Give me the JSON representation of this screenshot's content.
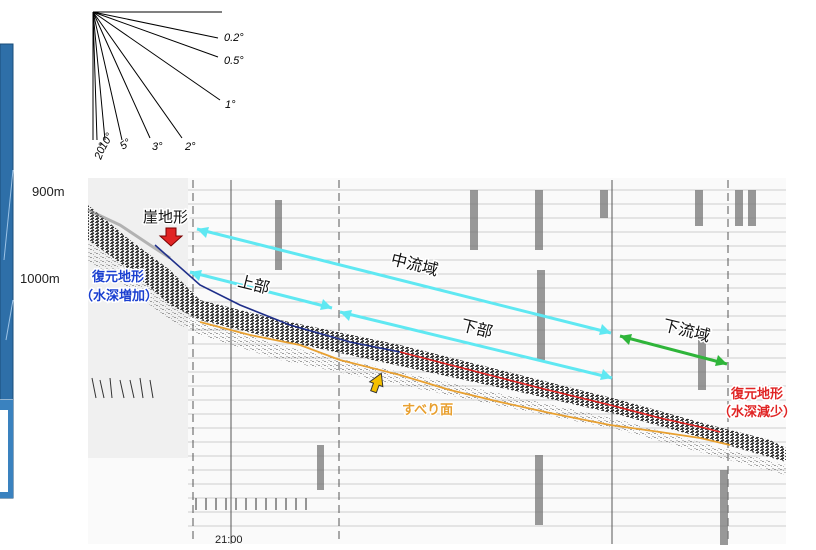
{
  "colors": {
    "section_blue": "#2e6fa8",
    "cyan_arrow": "#5fe8f2",
    "green_arrow": "#2fb53a",
    "red_line": "#e02424",
    "orange_line": "#e8a030",
    "navy_line": "#1f2f8a",
    "blue_text": "#1a3fd0",
    "red_text": "#e02424",
    "orange_text": "#e8a030"
  },
  "slope_scale": {
    "angles": [
      "0.2°",
      "0.5°",
      "1°",
      "2°",
      "3°",
      "5°",
      "10°",
      "20°"
    ]
  },
  "depth_axis": {
    "top": "900m",
    "mid": "1000m"
  },
  "labels": {
    "cliff": "崖地形",
    "restored_left_1": "復元地形",
    "restored_left_2": "（水深増加）",
    "upper": "上部",
    "lower": "下部",
    "middle_channel": "中流域",
    "lower_channel": "下流域",
    "restored_right_1": "復元地形",
    "restored_right_2": "（水深減少）",
    "slip_surface": "すべり面",
    "time": "21:00"
  },
  "icons": {
    "red_marker": "red-down-arrow-icon",
    "yellow_marker": "yellow-up-arrow-icon"
  }
}
